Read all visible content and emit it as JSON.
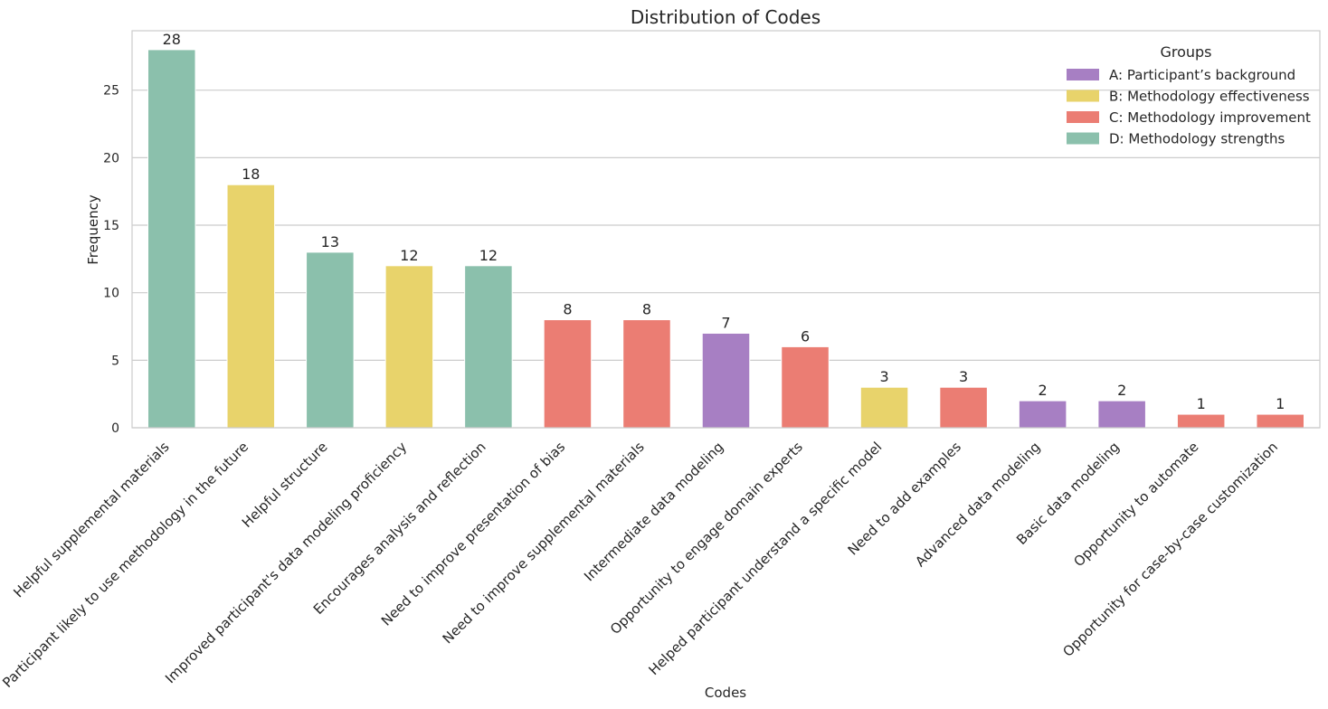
{
  "chart_data": {
    "type": "bar",
    "title": "Distribution of Codes",
    "xlabel": "Codes",
    "ylabel": "Frequency",
    "ylim": [
      0,
      29.4
    ],
    "yticks": [
      0,
      5,
      10,
      15,
      20,
      25
    ],
    "grid": "horizontal",
    "legend_position": "top-right",
    "legend_title": "Groups",
    "groups": [
      {
        "key": "A",
        "label": "A: Participant’s background",
        "color": "#a77fc3"
      },
      {
        "key": "B",
        "label": "B: Methodology effectiveness",
        "color": "#e8d36b"
      },
      {
        "key": "C",
        "label": "C: Methodology improvement",
        "color": "#eb7d73"
      },
      {
        "key": "D",
        "label": "D: Methodology strengths",
        "color": "#8bc0ac"
      }
    ],
    "categories": [
      "Helpful supplemental materials",
      "Participant likely to use methodology in the future",
      "Helpful structure",
      "Improved participant's data modeling proficiency",
      "Encourages analysis and reflection",
      "Need to improve presentation of bias",
      "Need to improve supplemental materials",
      "Intermediate data modeling",
      "Opportunity to engage domain experts",
      "Helped participant understand a specific model",
      "Need to add examples",
      "Advanced data modeling",
      "Basic data modeling",
      "Opportunity to automate",
      "Opportunity for case-by-case customization"
    ],
    "values": [
      28,
      18,
      13,
      12,
      12,
      8,
      8,
      7,
      6,
      3,
      3,
      2,
      2,
      1,
      1
    ],
    "category_groups": [
      "D",
      "B",
      "D",
      "B",
      "D",
      "C",
      "C",
      "A",
      "C",
      "B",
      "C",
      "A",
      "A",
      "C",
      "C"
    ]
  }
}
